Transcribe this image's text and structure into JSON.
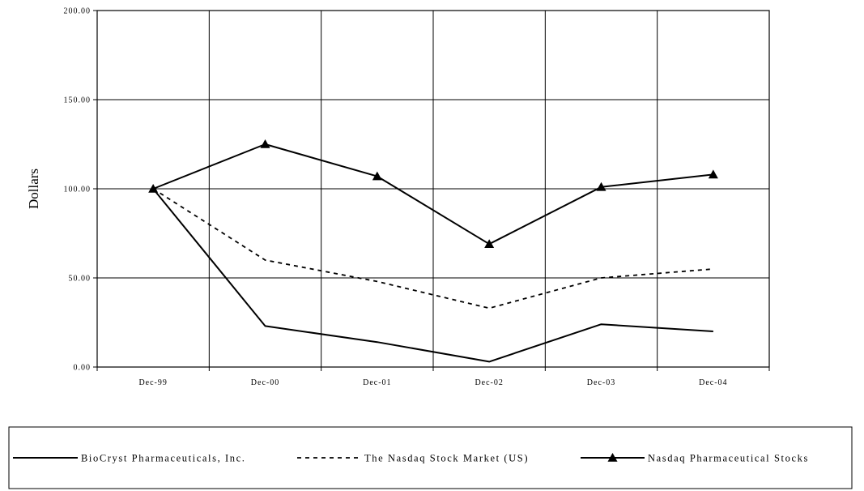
{
  "chart_data": {
    "type": "line",
    "title": "",
    "xlabel": "",
    "ylabel": "Dollars",
    "categories": [
      "Dec-99",
      "Dec-00",
      "Dec-01",
      "Dec-02",
      "Dec-03",
      "Dec-04"
    ],
    "y_tick_labels": [
      "0.00",
      "50.00",
      "100.00",
      "150.00",
      "200.00"
    ],
    "ylim": [
      0,
      200
    ],
    "grid": true,
    "legend_position": "bottom",
    "series": [
      {
        "name": "BioCryst Pharmaceuticals, Inc.",
        "values": [
          100,
          23,
          14,
          3,
          24,
          20
        ],
        "line_style": "solid",
        "marker": "none",
        "color": "#000000"
      },
      {
        "name": "The Nasdaq Stock Market (US)",
        "values": [
          100,
          60,
          48,
          33,
          50,
          55
        ],
        "line_style": "dashed",
        "marker": "none",
        "color": "#000000"
      },
      {
        "name": "Nasdaq Pharmaceutical Stocks",
        "values": [
          100,
          125,
          107,
          69,
          101,
          108
        ],
        "line_style": "solid",
        "marker": "triangle",
        "color": "#000000"
      }
    ]
  }
}
